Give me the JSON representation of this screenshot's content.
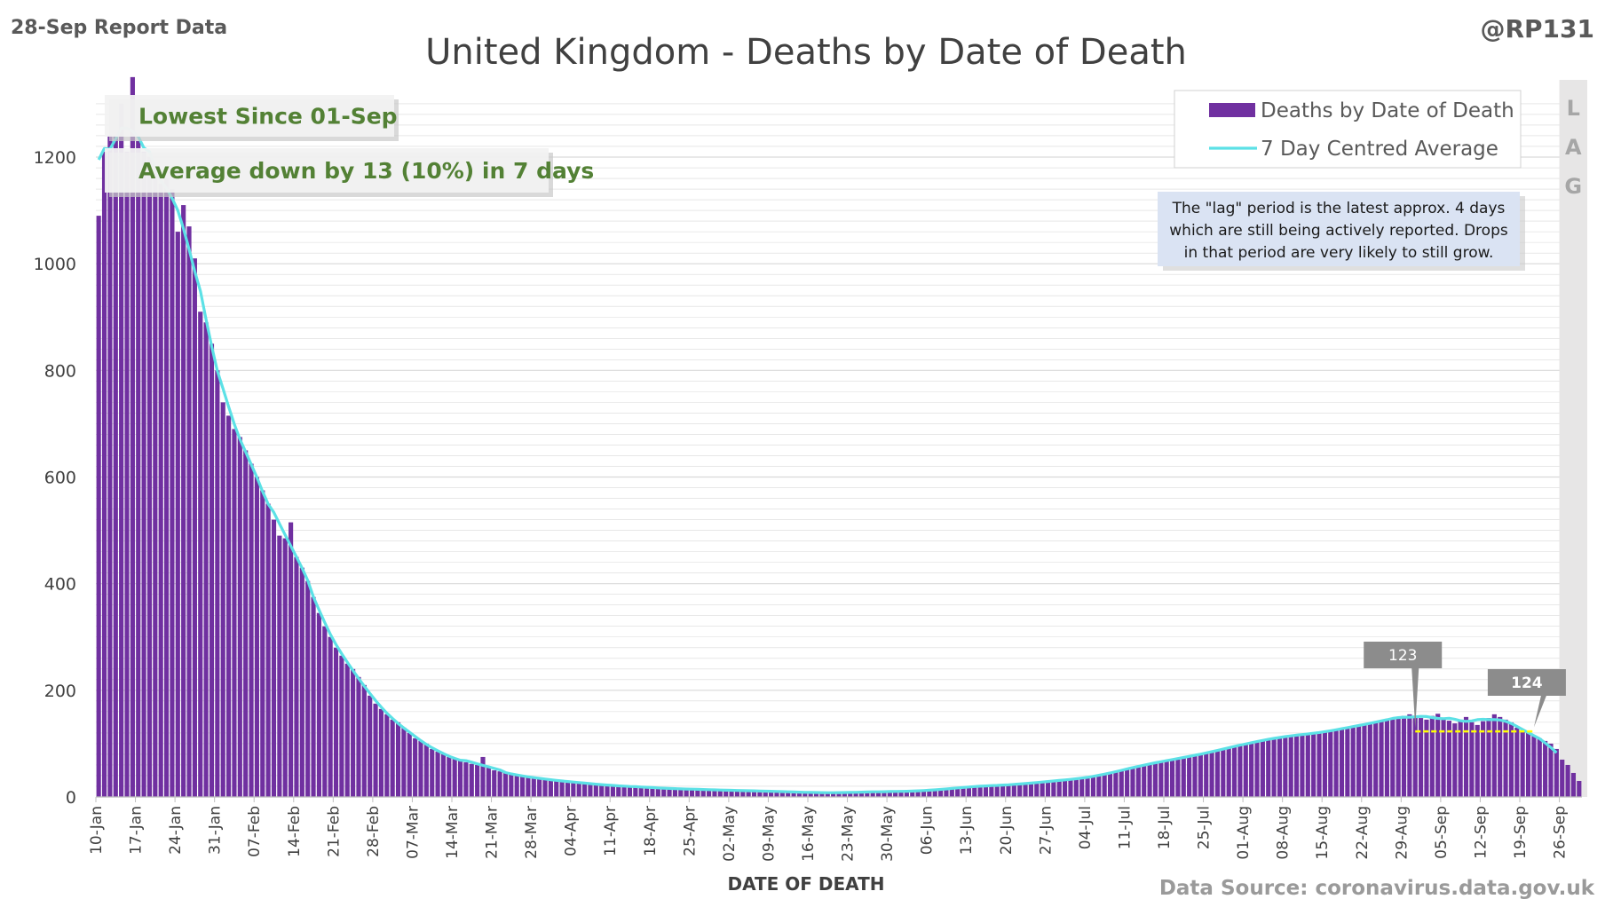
{
  "header": {
    "report_label": "28-Sep Report Data",
    "handle": "@RP131",
    "source": "Data Source: coronavirus.data.gov.uk"
  },
  "callouts": {
    "lowest": "Lowest Since 01-Sep",
    "average": "Average down by 13 (10%) in 7 days"
  },
  "note": {
    "lines": [
      "The \"lag\" period is the latest approx. 4 days",
      "which are still being actively reported.  Drops",
      "in that period are very likely to still grow."
    ]
  },
  "lag_letters": [
    "L",
    "A",
    "G"
  ],
  "markers": [
    {
      "label": "123",
      "date": "2020-08-30",
      "value": 123
    },
    {
      "label": "124",
      "date": "2020-09-20",
      "value": 124
    }
  ],
  "colors": {
    "bars": "#7030a0",
    "average_line": "#5ce1e6",
    "callout_text": "#538135",
    "lag_band": "#e7e6e6",
    "gridline": "#d9d9d9",
    "highlight_line": "#ffff00",
    "marker_fill": "#8c8c8c"
  },
  "chart_data": {
    "type": "bar",
    "title": "United Kingdom - Deaths by Date of Death",
    "xlabel": "DATE OF DEATH",
    "ylabel": "",
    "ylim": [
      0,
      1300
    ],
    "y_ticks": [
      0,
      200,
      400,
      600,
      800,
      1000,
      1200
    ],
    "x_tick_labels": [
      "10-Jan",
      "17-Jan",
      "24-Jan",
      "31-Jan",
      "07-Feb",
      "14-Feb",
      "21-Feb",
      "28-Feb",
      "07-Mar",
      "14-Mar",
      "21-Mar",
      "28-Mar",
      "04-Apr",
      "11-Apr",
      "18-Apr",
      "25-Apr",
      "02-May",
      "09-May",
      "16-May",
      "23-May",
      "30-May",
      "06-Jun",
      "13-Jun",
      "20-Jun",
      "27-Jun",
      "04-Jul",
      "11-Jul",
      "18-Jul",
      "25-Jul",
      "01-Aug",
      "08-Aug",
      "15-Aug",
      "22-Aug",
      "29-Aug",
      "05-Sep",
      "12-Sep",
      "19-Sep",
      "26-Sep"
    ],
    "legend": {
      "position": "top-right",
      "entries": [
        "Deaths by Date of Death",
        "7 Day Centred Average"
      ]
    },
    "lag_period": {
      "label": "LAG",
      "start": "2020-09-25",
      "end": "2020-09-28"
    },
    "grid": true,
    "series": [
      {
        "name": "Deaths by Date of Death",
        "kind": "bar",
        "x_start": "2020-01-10",
        "values": [
          1090,
          1210,
          1240,
          1240,
          1300,
          1210,
          1350,
          1230,
          1210,
          1200,
          1170,
          1150,
          1160,
          1140,
          1060,
          1110,
          1070,
          1010,
          910,
          890,
          850,
          800,
          740,
          715,
          690,
          675,
          650,
          625,
          600,
          575,
          550,
          520,
          490,
          485,
          515,
          450,
          430,
          405,
          375,
          345,
          320,
          300,
          280,
          265,
          250,
          240,
          225,
          210,
          190,
          175,
          165,
          155,
          145,
          140,
          130,
          120,
          110,
          105,
          100,
          90,
          85,
          80,
          75,
          72,
          68,
          65,
          62,
          60,
          75,
          55,
          50,
          48,
          45,
          42,
          40,
          40,
          38,
          36,
          35,
          33,
          32,
          31,
          30,
          29,
          28,
          27,
          26,
          25,
          24,
          23,
          22,
          21,
          21,
          20,
          20,
          19,
          19,
          18,
          18,
          17,
          16,
          16,
          15,
          15,
          15,
          15,
          14,
          14,
          14,
          13,
          13,
          13,
          12,
          12,
          12,
          12,
          11,
          11,
          11,
          11,
          10,
          10,
          10,
          9,
          9,
          9,
          8,
          8,
          8,
          8,
          8,
          8,
          8,
          8,
          9,
          9,
          9,
          10,
          10,
          10,
          10,
          10,
          10,
          11,
          11,
          11,
          12,
          12,
          13,
          14,
          15,
          16,
          17,
          18,
          19,
          20,
          20,
          21,
          21,
          22,
          22,
          23,
          23,
          24,
          25,
          26,
          27,
          28,
          29,
          30,
          31,
          32,
          33,
          34,
          35,
          36,
          38,
          40,
          42,
          45,
          48,
          50,
          52,
          55,
          58,
          60,
          62,
          64,
          66,
          68,
          70,
          72,
          74,
          76,
          78,
          80,
          82,
          85,
          87,
          90,
          92,
          95,
          97,
          100,
          102,
          104,
          106,
          108,
          110,
          112,
          114,
          115,
          116,
          117,
          118,
          119,
          120,
          122,
          124,
          126,
          128,
          130,
          132,
          134,
          136,
          138,
          140,
          142,
          145,
          147,
          150,
          152,
          155,
          150,
          148,
          145,
          152,
          156,
          149,
          143,
          138,
          145,
          150,
          140,
          135,
          142,
          148,
          155,
          150,
          145,
          140,
          130,
          125,
          120,
          115,
          110,
          105,
          100,
          90,
          70,
          60,
          45,
          30
        ],
        "values_note": "placeholder"
      },
      {
        "name": "7 Day Centred Average",
        "kind": "line",
        "x_start": "2020-01-10",
        "values": []
      }
    ]
  }
}
